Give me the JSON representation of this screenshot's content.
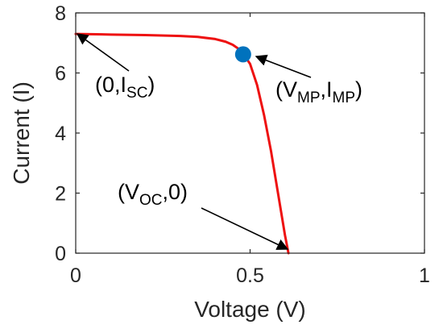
{
  "chart_data": {
    "type": "line",
    "title": "",
    "xlabel": "Voltage (V)",
    "ylabel": "Current (I)",
    "xlim": [
      0,
      1
    ],
    "ylim": [
      0,
      8
    ],
    "xticks": [
      "0",
      "0.5",
      "1"
    ],
    "xtick_values": [
      0,
      0.5,
      1
    ],
    "yticks": [
      "0",
      "2",
      "4",
      "6",
      "8"
    ],
    "ytick_values": [
      0,
      2,
      4,
      6,
      8
    ],
    "grid": false,
    "series": [
      {
        "color": "#ee1111",
        "x": [
          0,
          0.1,
          0.2,
          0.3,
          0.35,
          0.4,
          0.43,
          0.45,
          0.47,
          0.48,
          0.5,
          0.52,
          0.54,
          0.56,
          0.58,
          0.6,
          0.61
        ],
        "y": [
          7.3,
          7.28,
          7.26,
          7.23,
          7.2,
          7.13,
          7.04,
          6.94,
          6.78,
          6.65,
          6.3,
          5.6,
          4.6,
          3.4,
          2.0,
          0.6,
          0.0
        ]
      }
    ],
    "points": [
      {
        "x": 0.48,
        "y": 6.62,
        "color": "#0072bd"
      }
    ],
    "annotations": [
      {
        "label": "(0,I",
        "subscript": "SC",
        "after": ")",
        "target": [
          0,
          7.3
        ]
      },
      {
        "label": "(V",
        "subscript": "MP",
        "middle": ",I",
        "subscript2": "MP",
        "after": ")",
        "target": [
          0.48,
          6.62
        ]
      },
      {
        "label": "(V",
        "subscript": "OC",
        "middle": ",0)",
        "target": [
          0.61,
          0
        ]
      }
    ]
  }
}
